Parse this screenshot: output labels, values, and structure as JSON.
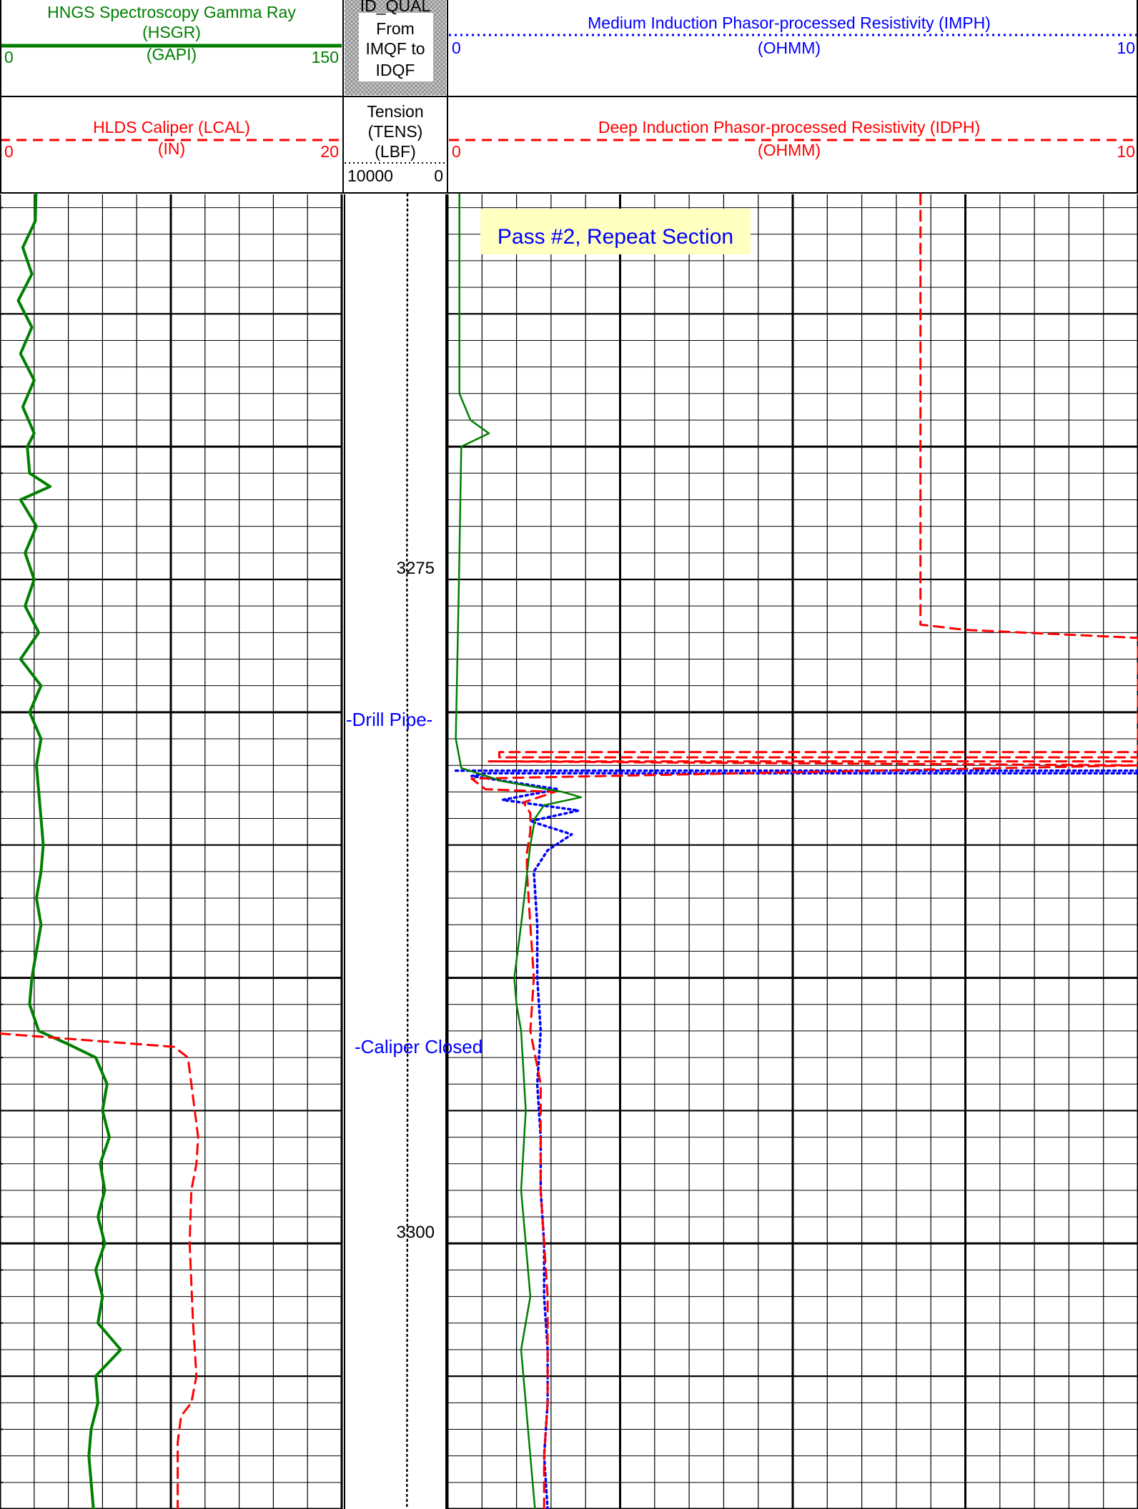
{
  "header": {
    "gr": {
      "name": "HNGS Spectroscopy Gamma Ray",
      "mnemonic": "(HSGR)",
      "unit": "(GAPI)",
      "left": "0",
      "right": "150",
      "color": "#008000"
    },
    "cal": {
      "name": "HLDS Caliper (LCAL)",
      "unit": "(IN)",
      "left": "0",
      "right": "20",
      "color": "#ff0000"
    },
    "idqual": {
      "line1": "ID_QUAL",
      "line2": "From",
      "line3": "IMQF to",
      "line4": "IDQF"
    },
    "tens": {
      "line1": "Tension",
      "line2": "(TENS)",
      "line3": "(LBF)",
      "left": "10000",
      "right": "0"
    },
    "imph": {
      "name": "Medium Induction Phasor-processed Resistivity (IMPH)",
      "unit": "(OHMM)",
      "left": "0",
      "right": "10",
      "color": "#0000ff"
    },
    "idph": {
      "name": "Deep Induction Phasor-processed Resistivity (IDPH)",
      "unit": "(OHMM)",
      "left": "0",
      "right": "10",
      "color": "#ff0000"
    }
  },
  "annotations": {
    "pass": "Pass #2, Repeat Section",
    "drill_pipe": "-Drill Pipe-",
    "caliper_closed": "-Caliper Closed"
  },
  "chart_data": {
    "type": "line",
    "depth_unit": "ft",
    "depth_range": [
      3260.5,
      3310
    ],
    "depth_labels": [
      3275,
      3300
    ],
    "tracks": {
      "track1_scale": "linear",
      "track3_scale": "linear",
      "grid": true
    },
    "series": [
      {
        "name": "HSGR",
        "track": 1,
        "range": [
          0,
          150
        ],
        "color": "#008000",
        "style": "solid",
        "points": [
          [
            3260.5,
            15.8
          ],
          [
            3261.5,
            15.5
          ],
          [
            3262.5,
            10
          ],
          [
            3263.5,
            14
          ],
          [
            3264.5,
            8
          ],
          [
            3265.5,
            14
          ],
          [
            3266.5,
            9
          ],
          [
            3267.5,
            15
          ],
          [
            3268.5,
            10
          ],
          [
            3269.5,
            15
          ],
          [
            3270,
            12
          ],
          [
            3271,
            13
          ],
          [
            3271.5,
            22
          ],
          [
            3272,
            9
          ],
          [
            3273,
            16
          ],
          [
            3274,
            11
          ],
          [
            3275,
            15
          ],
          [
            3276,
            11
          ],
          [
            3277,
            17
          ],
          [
            3278,
            9
          ],
          [
            3279,
            18
          ],
          [
            3280,
            13
          ],
          [
            3281,
            18
          ],
          [
            3282,
            16
          ],
          [
            3283,
            17
          ],
          [
            3284,
            18
          ],
          [
            3285,
            19
          ],
          [
            3286,
            18
          ],
          [
            3287,
            16
          ],
          [
            3288,
            18
          ],
          [
            3289,
            16
          ],
          [
            3290,
            14
          ],
          [
            3291,
            13
          ],
          [
            3292,
            17
          ],
          [
            3292.5,
            30
          ],
          [
            3293,
            42
          ],
          [
            3294,
            47
          ],
          [
            3295,
            45
          ],
          [
            3296,
            48
          ],
          [
            3297,
            44
          ],
          [
            3298,
            46
          ],
          [
            3299,
            43
          ],
          [
            3300,
            46
          ],
          [
            3301,
            42
          ],
          [
            3302,
            45
          ],
          [
            3303,
            43
          ],
          [
            3304,
            53
          ],
          [
            3305,
            42
          ],
          [
            3306,
            43
          ],
          [
            3307,
            40
          ],
          [
            3308,
            39
          ],
          [
            3309,
            40
          ],
          [
            3310,
            41
          ]
        ]
      },
      {
        "name": "LCAL",
        "track": 1,
        "range": [
          0,
          20
        ],
        "color": "#ff0000",
        "style": "dashed",
        "points": [
          [
            3292.1,
            0
          ],
          [
            3292.6,
            10.2
          ],
          [
            3293,
            11
          ],
          [
            3294,
            11.2
          ],
          [
            3295,
            11.4
          ],
          [
            3296,
            11.6
          ],
          [
            3297,
            11.5
          ],
          [
            3298,
            11.2
          ],
          [
            3300,
            11.1
          ],
          [
            3303,
            11.3
          ],
          [
            3305,
            11.5
          ],
          [
            3306,
            11.2
          ],
          [
            3306.5,
            10.6
          ],
          [
            3307.5,
            10.4
          ],
          [
            3310,
            10.4
          ]
        ]
      },
      {
        "name": "TENS",
        "track": 2,
        "range": [
          10000,
          0
        ],
        "color": "#000000",
        "style": "dotted",
        "points": [
          [
            3260.5,
            3800
          ],
          [
            3275,
            3850
          ],
          [
            3282,
            3800
          ],
          [
            3290,
            3780
          ],
          [
            3300,
            3820
          ],
          [
            3310,
            3850
          ]
        ]
      },
      {
        "name": "IMPH",
        "track": 3,
        "range": [
          0,
          10
        ],
        "color": "#0000ff",
        "style": "dotted",
        "points": [
          [
            3282.2,
            0.12
          ],
          [
            3282.2,
            10
          ],
          [
            3282.3,
            10
          ],
          [
            3282.3,
            0.55
          ],
          [
            3282.4,
            0.35
          ],
          [
            3282.9,
            1.6
          ],
          [
            3283.3,
            0.8
          ],
          [
            3283.7,
            1.9
          ],
          [
            3284.1,
            1.2
          ],
          [
            3284.6,
            1.8
          ],
          [
            3285.2,
            1.45
          ],
          [
            3286,
            1.25
          ],
          [
            3288,
            1.3
          ],
          [
            3290,
            1.3
          ],
          [
            3292,
            1.35
          ],
          [
            3294,
            1.3
          ],
          [
            3296,
            1.35
          ],
          [
            3298,
            1.35
          ],
          [
            3300,
            1.4
          ],
          [
            3302,
            1.4
          ],
          [
            3304,
            1.45
          ],
          [
            3306,
            1.45
          ],
          [
            3308,
            1.4
          ],
          [
            3310,
            1.45
          ]
        ]
      },
      {
        "name": "IDPH",
        "track": 3,
        "range": [
          0,
          10
        ],
        "color": "#ff0000",
        "style": "dashed",
        "points": [
          [
            3260.5,
            6.85
          ],
          [
            3276.7,
            6.85
          ],
          [
            3276.9,
            7.5
          ],
          [
            3277.2,
            10
          ],
          [
            3281.5,
            10
          ],
          [
            3281.5,
            0.75
          ],
          [
            3281.7,
            0.75
          ],
          [
            3281.7,
            10
          ],
          [
            3281.85,
            10
          ],
          [
            3281.85,
            0.6
          ],
          [
            3282.0,
            10
          ],
          [
            3282.5,
            0.35
          ],
          [
            3282.9,
            0.55
          ],
          [
            3283,
            1.55
          ],
          [
            3283.4,
            1.1
          ],
          [
            3283.8,
            1.2
          ],
          [
            3284.5,
            1.2
          ],
          [
            3285.3,
            1.15
          ],
          [
            3286,
            1.15
          ],
          [
            3288,
            1.2
          ],
          [
            3290,
            1.25
          ],
          [
            3292,
            1.2
          ],
          [
            3294,
            1.35
          ],
          [
            3296,
            1.35
          ],
          [
            3298,
            1.35
          ],
          [
            3300,
            1.4
          ],
          [
            3302,
            1.45
          ],
          [
            3304,
            1.45
          ],
          [
            3306,
            1.45
          ],
          [
            3308,
            1.4
          ],
          [
            3310,
            1.4
          ]
        ]
      },
      {
        "name": "HSGR-backup",
        "track": 3,
        "range": [
          0,
          150
        ],
        "color": "#008000",
        "style": "solid",
        "points": [
          [
            3260.5,
            2.6
          ],
          [
            3268,
            2.6
          ],
          [
            3269,
            5
          ],
          [
            3269.5,
            9
          ],
          [
            3270,
            3
          ],
          [
            3275,
            2.5
          ],
          [
            3281,
            1.8
          ],
          [
            3282.1,
            3
          ],
          [
            3282.6,
            12
          ],
          [
            3283,
            25
          ],
          [
            3283.2,
            29
          ],
          [
            3283.5,
            21
          ],
          [
            3284,
            19
          ],
          [
            3285,
            18
          ],
          [
            3288,
            16
          ],
          [
            3290,
            14.5
          ],
          [
            3291,
            15
          ],
          [
            3292,
            16
          ],
          [
            3295,
            17
          ],
          [
            3298,
            16
          ],
          [
            3300,
            17
          ],
          [
            3302,
            18
          ],
          [
            3304,
            16
          ],
          [
            3306,
            17
          ],
          [
            3308,
            18
          ],
          [
            3310,
            19
          ]
        ]
      }
    ]
  }
}
